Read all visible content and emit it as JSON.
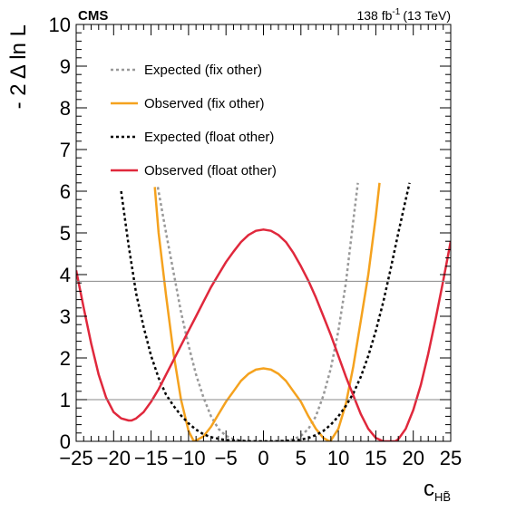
{
  "chart_data": {
    "type": "line",
    "experiment": "CMS",
    "lumi": {
      "text": "138 fb",
      "sup": "-1",
      "energy": "(13 TeV)"
    },
    "xlabel": "c",
    "xlabel_sub": "HB̃",
    "ylabel": "- 2 Δ ln L",
    "xlim": [
      -25,
      25
    ],
    "ylim": [
      0,
      10
    ],
    "xticks": [
      -25,
      -20,
      -15,
      -10,
      -5,
      0,
      5,
      10,
      15,
      20,
      25
    ],
    "yticks": [
      0,
      1,
      2,
      3,
      4,
      5,
      6,
      7,
      8,
      9,
      10
    ],
    "reference_lines": [
      1,
      3.84
    ],
    "grid": false,
    "legend_position": "top-left",
    "series": [
      {
        "name": "Expected (fix other)",
        "color": "#999999",
        "style": "dotted",
        "x": [
          -14.1,
          -13,
          -12,
          -11,
          -10,
          -9,
          -8,
          -7,
          -6,
          -5,
          -4,
          -3,
          -2,
          -1,
          0,
          1,
          2,
          3,
          4,
          5,
          6,
          7,
          8,
          9,
          10,
          11,
          12,
          12.6
        ],
        "y": [
          6.1,
          5.0,
          4.05,
          3.1,
          2.3,
          1.6,
          1.05,
          0.6,
          0.3,
          0.13,
          0.05,
          0.02,
          0.01,
          0.0,
          0.0,
          0.0,
          0.01,
          0.02,
          0.05,
          0.13,
          0.3,
          0.6,
          1.1,
          1.75,
          2.65,
          3.8,
          5.3,
          6.2
        ]
      },
      {
        "name": "Observed (fix other)",
        "color": "#f5a21e",
        "style": "solid",
        "x": [
          -14.5,
          -14,
          -13,
          -12,
          -11,
          -10,
          -9.3,
          -9,
          -8,
          -7,
          -6,
          -5,
          -4,
          -3,
          -2,
          -1,
          0,
          1,
          2,
          3,
          4,
          5,
          6,
          7,
          8,
          8.8,
          9,
          10,
          11,
          12,
          13,
          14,
          15,
          15.5
        ],
        "y": [
          6.1,
          5.0,
          3.5,
          2.1,
          1.0,
          0.25,
          0.0,
          0.02,
          0.12,
          0.35,
          0.65,
          0.95,
          1.2,
          1.45,
          1.62,
          1.72,
          1.75,
          1.72,
          1.62,
          1.45,
          1.2,
          0.95,
          0.6,
          0.3,
          0.08,
          0.0,
          0.02,
          0.3,
          0.9,
          1.8,
          2.9,
          4.0,
          5.4,
          6.2
        ]
      },
      {
        "name": "Expected (float other)",
        "color": "#000000",
        "style": "dotted",
        "x": [
          -19,
          -18,
          -17,
          -16,
          -15,
          -14,
          -13,
          -12,
          -11,
          -10,
          -9,
          -8,
          -7,
          -6,
          -5,
          -4,
          -3,
          -2,
          -1,
          0,
          1,
          2,
          3,
          4,
          5,
          6,
          7,
          8,
          9,
          10,
          11,
          12,
          13,
          14,
          15,
          16,
          17,
          18,
          19,
          19.5
        ],
        "y": [
          6.0,
          4.7,
          3.55,
          2.75,
          2.05,
          1.52,
          1.12,
          0.85,
          0.62,
          0.43,
          0.28,
          0.17,
          0.1,
          0.06,
          0.03,
          0.02,
          0.01,
          0.0,
          0.0,
          0.0,
          0.0,
          0.0,
          0.01,
          0.02,
          0.04,
          0.08,
          0.15,
          0.25,
          0.4,
          0.6,
          0.85,
          1.15,
          1.55,
          2.05,
          2.65,
          3.35,
          4.15,
          5.0,
          5.8,
          6.2
        ]
      },
      {
        "name": "Observed (float other)",
        "color": "#e0283c",
        "style": "solid",
        "x": [
          -25,
          -24,
          -23,
          -22,
          -21,
          -20,
          -19,
          -18,
          -17.6,
          -17,
          -16,
          -15,
          -14,
          -13,
          -12,
          -11,
          -10,
          -9,
          -8,
          -7,
          -6,
          -5,
          -4,
          -3,
          -2,
          -1,
          0,
          1,
          2,
          3,
          4,
          5,
          6,
          7,
          8,
          9,
          10,
          11,
          12,
          13,
          14,
          15,
          16,
          17,
          17.6,
          18,
          19,
          20,
          21,
          22,
          23,
          24,
          25
        ],
        "y": [
          4.1,
          3.2,
          2.35,
          1.6,
          1.05,
          0.7,
          0.55,
          0.5,
          0.5,
          0.55,
          0.7,
          0.95,
          1.25,
          1.6,
          1.95,
          2.3,
          2.65,
          3.0,
          3.35,
          3.7,
          4.0,
          4.3,
          4.55,
          4.78,
          4.95,
          5.05,
          5.08,
          5.05,
          4.95,
          4.78,
          4.52,
          4.2,
          3.85,
          3.45,
          3.0,
          2.55,
          2.05,
          1.55,
          1.1,
          0.65,
          0.3,
          0.08,
          0.0,
          0.0,
          0.0,
          0.05,
          0.3,
          0.75,
          1.35,
          2.1,
          2.95,
          3.85,
          4.8
        ]
      }
    ]
  }
}
